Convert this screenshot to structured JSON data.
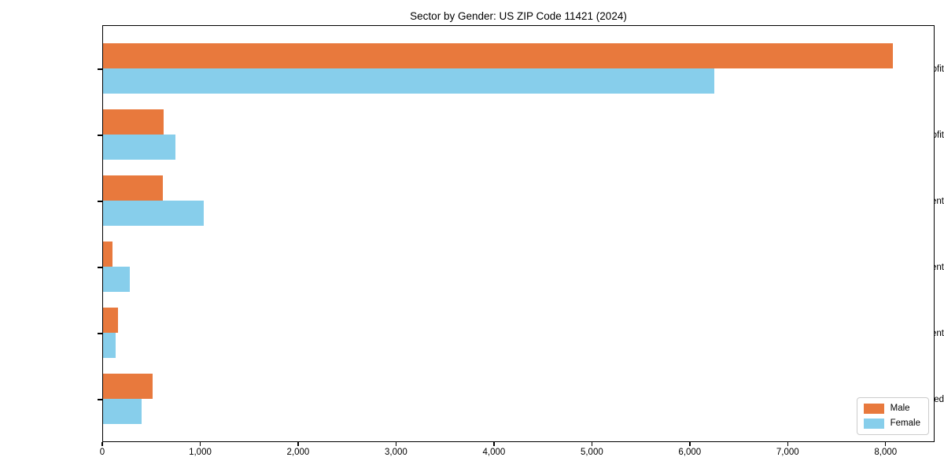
{
  "title": "Sector by Gender: US ZIP Code 11421 (2024)",
  "colors": {
    "male": "#e8793d",
    "female": "#87ceeb",
    "axis": "#000000",
    "legend_border": "#cccccc",
    "background": "#ffffff"
  },
  "chart_data": {
    "type": "bar",
    "orientation": "horizontal",
    "title": "Sector by Gender: US ZIP Code 11421 (2024)",
    "xlabel": "",
    "ylabel": "",
    "categories": [
      "Private For-Profit",
      "Private Non-Profit",
      "Local Government",
      "State Government",
      "Federal Government",
      "Self-Employed"
    ],
    "series": [
      {
        "name": "Male",
        "color": "#e8793d",
        "values": [
          8070,
          615,
          610,
          100,
          150,
          510
        ]
      },
      {
        "name": "Female",
        "color": "#87ceeb",
        "values": [
          6240,
          740,
          1025,
          270,
          130,
          390
        ]
      }
    ],
    "xlim": [
      0,
      8500
    ],
    "x_ticks": [
      0,
      1000,
      2000,
      3000,
      4000,
      5000,
      6000,
      7000,
      8000
    ],
    "x_tick_labels": [
      "0",
      "1,000",
      "2,000",
      "3,000",
      "4,000",
      "5,000",
      "6,000",
      "7,000",
      "8,000"
    ],
    "grid": false,
    "legend_position": "lower right"
  }
}
